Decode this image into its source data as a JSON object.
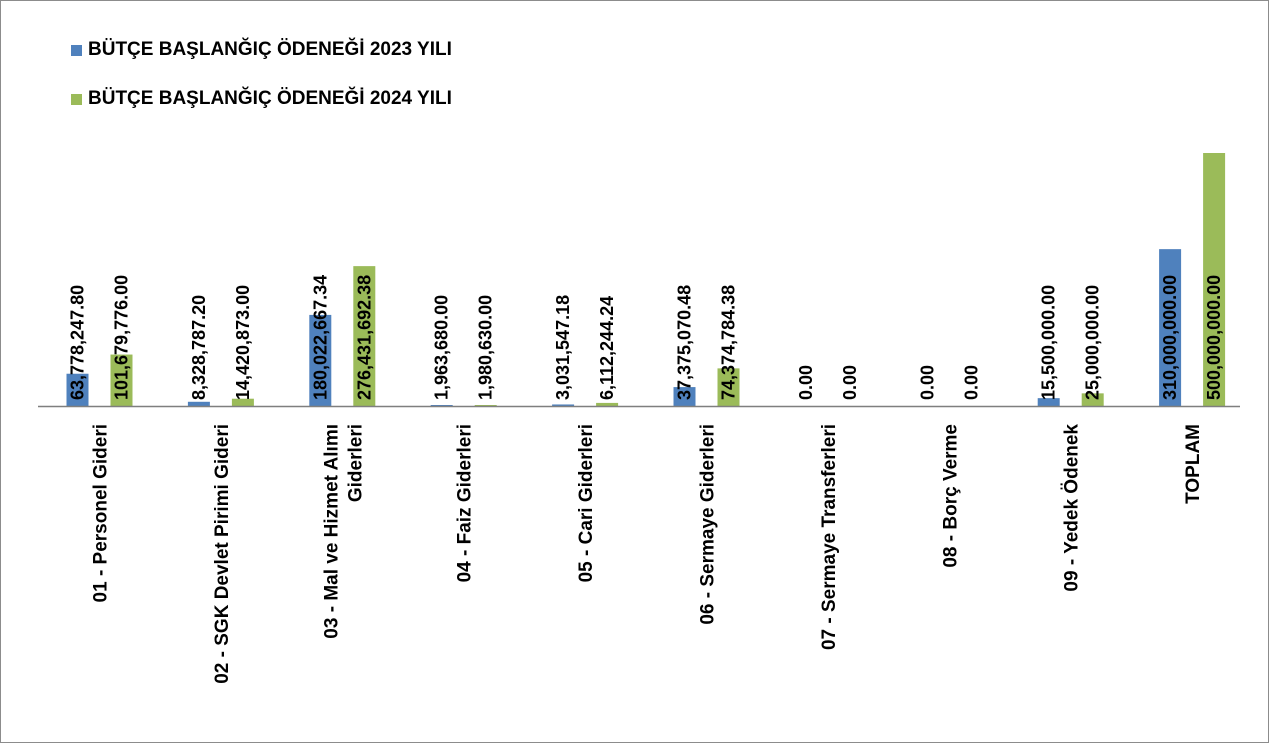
{
  "colors": {
    "s2023": "#4F81BD",
    "s2024": "#9BBB59",
    "axis": "#7f7f7f",
    "text": "#000000"
  },
  "chart_data": {
    "type": "bar",
    "title": "",
    "xlabel": "",
    "ylabel": "",
    "ylim": [
      0,
      500000000
    ],
    "grid": false,
    "legend": "top-left",
    "categories": [
      "01 - Personel Gideri",
      "02 - SGK Devlet Pirimi Gideri",
      "03 - Mal ve Hizmet Alımı Giderleri",
      "04 - Faiz Giderleri",
      "05 - Cari Giderleri",
      "06 - Sermaye Giderleri",
      "07 - Sermaye Transferleri",
      "08 - Borç Verme",
      "09 - Yedek Ödenek",
      "TOPLAM"
    ],
    "category_lines": [
      [
        "01 - Personel Gideri"
      ],
      [
        "02 - SGK Devlet Pirimi Gideri"
      ],
      [
        "03 - Mal ve Hizmet Alımı",
        "Giderleri"
      ],
      [
        "04 - Faiz Giderleri"
      ],
      [
        "05 - Cari Giderleri"
      ],
      [
        "06 - Sermaye Giderleri"
      ],
      [
        "07 - Sermaye Transferleri"
      ],
      [
        "08 - Borç Verme"
      ],
      [
        "09 - Yedek Ödenek"
      ],
      [
        "TOPLAM"
      ]
    ],
    "series": [
      {
        "name": "BÜTÇE BAŞLANĞIÇ ÖDENEĞİ 2023 YILI",
        "values": [
          63778247.8,
          8328787.2,
          180022667.34,
          1963680.0,
          3031547.18,
          37375070.48,
          0,
          0,
          15500000.0,
          310000000.0
        ],
        "labels": [
          "63,778,247.80",
          "8,328,787.20",
          "180,022,667.34",
          "1,963,680.00",
          "3,031,547.18",
          "37,375,070.48",
          "0.00",
          "0.00",
          "15,500,000.00",
          "310,000,000.00"
        ]
      },
      {
        "name": "BÜTÇE BAŞLANĞIÇ ÖDENEĞİ 2024 YILI",
        "values": [
          101679776.0,
          14420873.0,
          276431692.38,
          1980630.0,
          6112244.24,
          74374784.38,
          0,
          0,
          25000000.0,
          500000000.0
        ],
        "labels": [
          "101,679,776.00",
          "14,420,873.00",
          "276,431,692.38",
          "1,980,630.00",
          "6,112,244.24",
          "74,374,784.38",
          "0.00",
          "0.00",
          "25,000,000.00",
          "500,000,000.00"
        ]
      }
    ]
  }
}
